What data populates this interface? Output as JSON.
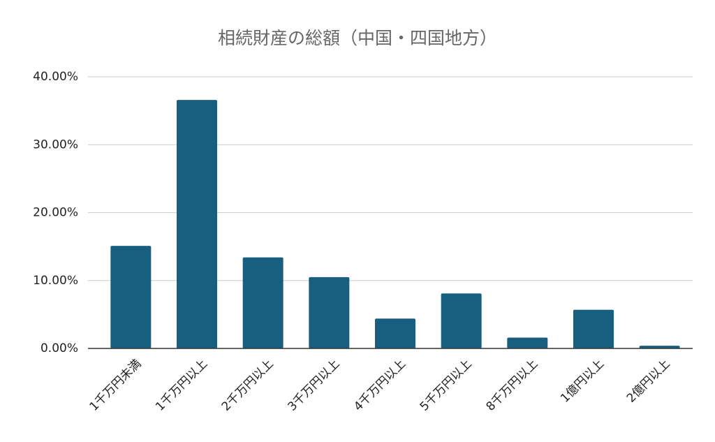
{
  "chart_data": {
    "type": "bar",
    "title": "相続財産の総額（中国・四国地方）",
    "categories": [
      "1千万円未満",
      "1千万円以上",
      "2千万円以上",
      "3千万円以上",
      "4千万円以上",
      "5千万円以上",
      "8千万円以上",
      "1億円以上",
      "2億円以上"
    ],
    "values": [
      15.1,
      36.6,
      13.4,
      10.5,
      4.4,
      8.1,
      1.6,
      5.7,
      0.4
    ],
    "color": "#175e7f",
    "ylim": [
      0,
      40
    ],
    "yticks": [
      {
        "value": 0,
        "label": "0.00%"
      },
      {
        "value": 10,
        "label": "10.00%"
      },
      {
        "value": 20,
        "label": "20.00%"
      },
      {
        "value": 30,
        "label": "30.00%"
      },
      {
        "value": 40,
        "label": "40.00%"
      }
    ],
    "grid": true
  }
}
